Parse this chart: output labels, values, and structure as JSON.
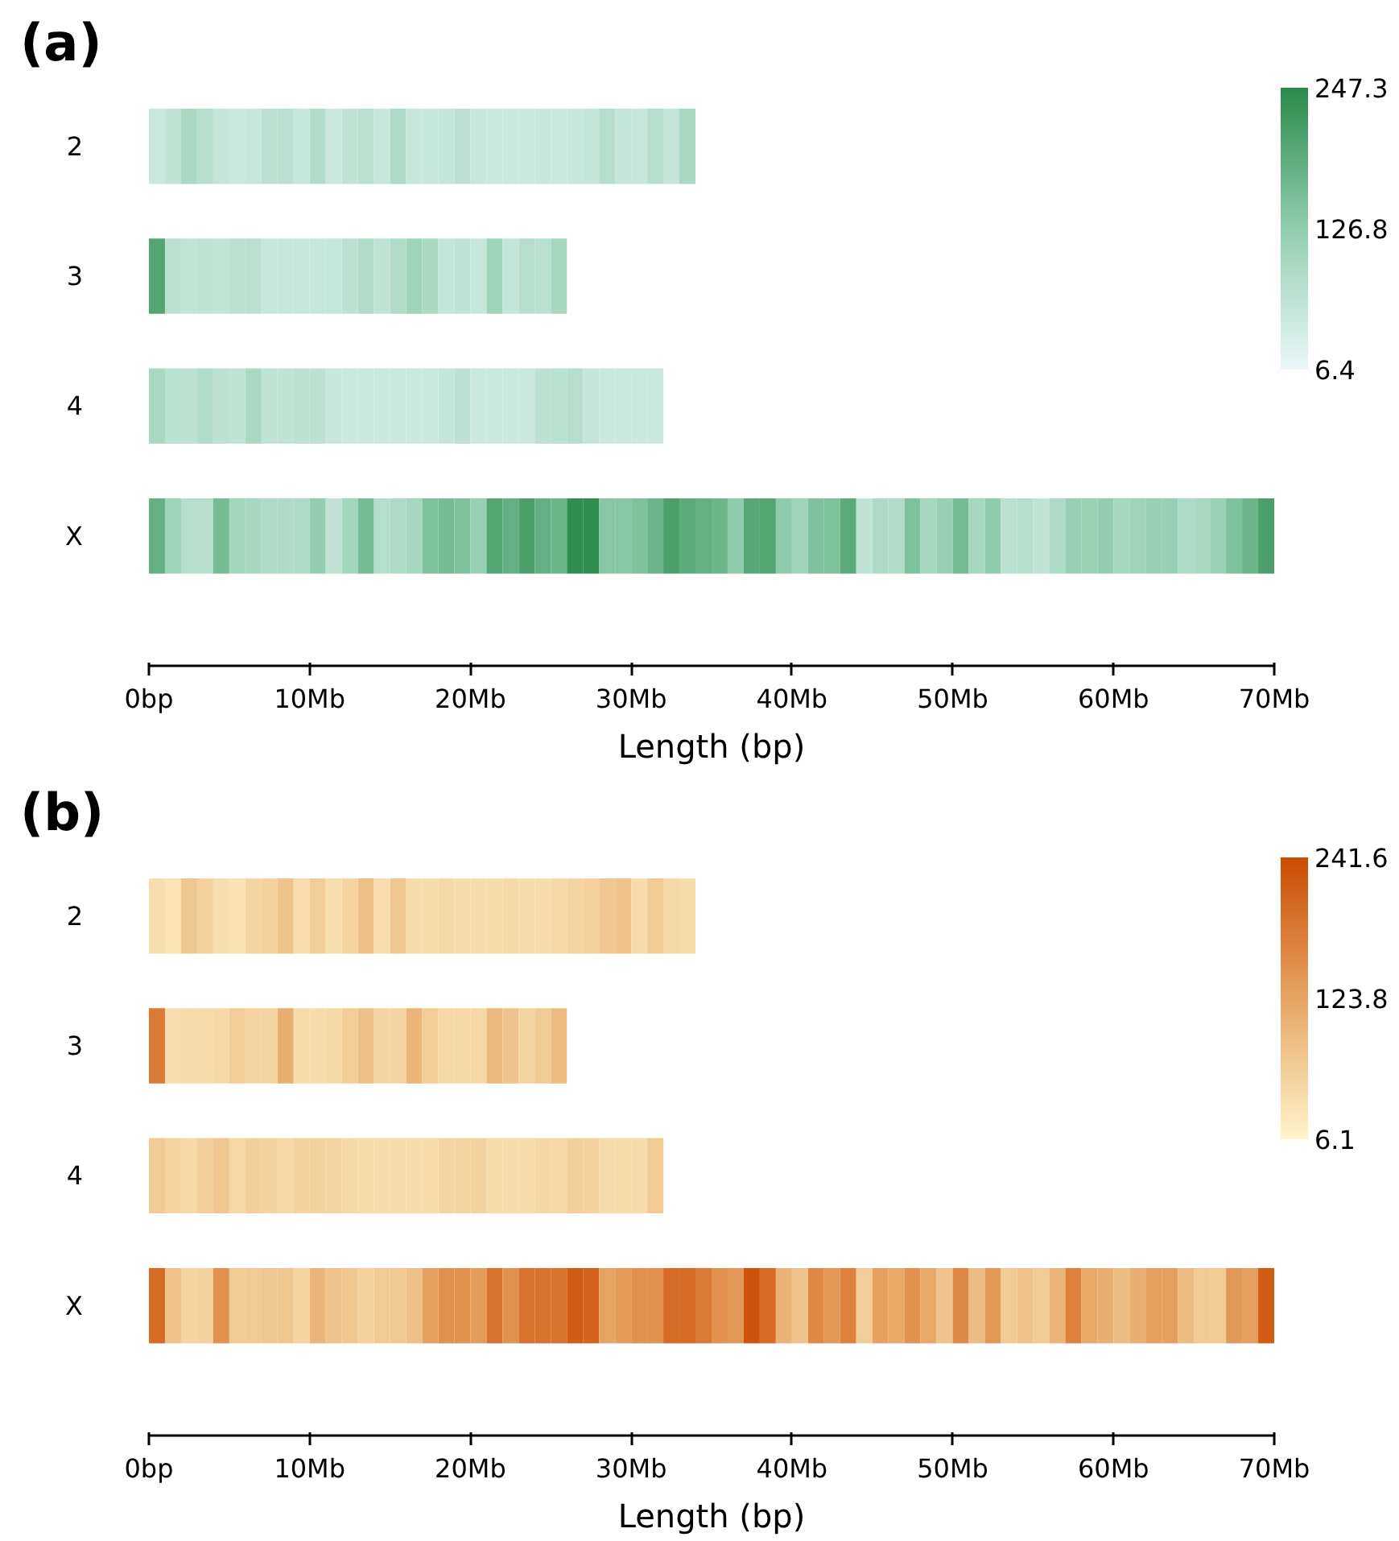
{
  "chart_data": [
    {
      "type": "heatmap",
      "title": "(a)",
      "xlabel": "Length (bp)",
      "x": [
        0.5,
        1.5,
        2.5,
        3.5,
        4.5,
        5.5,
        6.5,
        7.5,
        8.5,
        9.5,
        10.5,
        11.5,
        12.5,
        13.5,
        14.5,
        15.5,
        16.5,
        17.5,
        18.5,
        19.5,
        20.5,
        21.5,
        22.5,
        23.5,
        24.5,
        25.5,
        26.5,
        27.5,
        28.5,
        29.5,
        30.5,
        31.5,
        32.5,
        33.5,
        34.5,
        35.5,
        36.5,
        37.5,
        38.5,
        39.5,
        40.5,
        41.5,
        42.5,
        43.5,
        44.5,
        45.5,
        46.5,
        47.5,
        48.5,
        49.5,
        50.5,
        51.5,
        52.5,
        53.5,
        54.5,
        55.5,
        56.5,
        57.5,
        58.5,
        59.5,
        60.5,
        61.5,
        62.5,
        63.5,
        64.5,
        65.5,
        66.5,
        67.5,
        68.5,
        69.5
      ],
      "y_categories": [
        "2",
        "3",
        "4",
        "X"
      ],
      "cells": [
        [
          50,
          65,
          95,
          80,
          60,
          50,
          55,
          70,
          75,
          55,
          85,
          50,
          65,
          75,
          55,
          90,
          55,
          55,
          60,
          70,
          55,
          50,
          52,
          50,
          55,
          50,
          55,
          60,
          80,
          60,
          55,
          80,
          60,
          95,
          null,
          null,
          null,
          null,
          null,
          null,
          null,
          null,
          null,
          null,
          null,
          null,
          null,
          null,
          null,
          null,
          null,
          null,
          null,
          null,
          null,
          null,
          null,
          null,
          null,
          null,
          null,
          null,
          null,
          null,
          null,
          null,
          null,
          null,
          null,
          null
        ],
        [
          200,
          75,
          62,
          68,
          62,
          72,
          75,
          55,
          55,
          55,
          55,
          58,
          70,
          85,
          65,
          85,
          110,
          95,
          60,
          68,
          55,
          110,
          60,
          80,
          75,
          100,
          null,
          null,
          null,
          null,
          null,
          null,
          null,
          null,
          null,
          null,
          null,
          null,
          null,
          null,
          null,
          null,
          null,
          null,
          null,
          null,
          null,
          null,
          null,
          null,
          null,
          null,
          null,
          null,
          null,
          null,
          null,
          null,
          null,
          null,
          null,
          null,
          null,
          null,
          null,
          null,
          null,
          null,
          null,
          null
        ],
        [
          95,
          72,
          70,
          85,
          70,
          65,
          95,
          65,
          65,
          70,
          70,
          55,
          50,
          50,
          50,
          50,
          50,
          50,
          60,
          70,
          50,
          50,
          50,
          50,
          70,
          75,
          80,
          60,
          50,
          50,
          50,
          50,
          null,
          null,
          null,
          null,
          null,
          null,
          null,
          null,
          null,
          null,
          null,
          null,
          null,
          null,
          null,
          null,
          null,
          null,
          null,
          null,
          null,
          null,
          null,
          null,
          null,
          null,
          null,
          null,
          null,
          null,
          null,
          null,
          null,
          null,
          null,
          null,
          null,
          null
        ],
        [
          180,
          110,
          80,
          80,
          160,
          105,
          100,
          90,
          90,
          90,
          125,
          65,
          105,
          160,
          80,
          90,
          100,
          150,
          160,
          150,
          120,
          200,
          180,
          210,
          180,
          170,
          240,
          240,
          140,
          140,
          150,
          170,
          210,
          190,
          180,
          170,
          130,
          195,
          200,
          130,
          110,
          150,
          150,
          190,
          65,
          90,
          85,
          150,
          100,
          120,
          160,
          100,
          130,
          75,
          80,
          65,
          90,
          120,
          118,
          125,
          100,
          110,
          120,
          120,
          90,
          95,
          115,
          150,
          170,
          210
        ]
      ],
      "clim": [
        6.4,
        247.3
      ],
      "cticks": [
        6.4,
        126.8,
        247.3
      ],
      "xlim": [
        0,
        70
      ],
      "xticks": [
        {
          "value": 0,
          "label": "0bp"
        },
        {
          "value": 10,
          "label": "10Mb"
        },
        {
          "value": 20,
          "label": "20Mb"
        },
        {
          "value": 30,
          "label": "30Mb"
        },
        {
          "value": 40,
          "label": "40Mb"
        },
        {
          "value": 50,
          "label": "50Mb"
        },
        {
          "value": 60,
          "label": "60Mb"
        },
        {
          "value": 70,
          "label": "70Mb"
        }
      ],
      "grid": false
    },
    {
      "type": "heatmap",
      "title": "(b)",
      "xlabel": "Length (bp)",
      "x": [
        0.5,
        1.5,
        2.5,
        3.5,
        4.5,
        5.5,
        6.5,
        7.5,
        8.5,
        9.5,
        10.5,
        11.5,
        12.5,
        13.5,
        14.5,
        15.5,
        16.5,
        17.5,
        18.5,
        19.5,
        20.5,
        21.5,
        22.5,
        23.5,
        24.5,
        25.5,
        26.5,
        27.5,
        28.5,
        29.5,
        30.5,
        31.5,
        32.5,
        33.5,
        34.5,
        35.5,
        36.5,
        37.5,
        38.5,
        39.5,
        40.5,
        41.5,
        42.5,
        43.5,
        44.5,
        45.5,
        46.5,
        47.5,
        48.5,
        49.5,
        50.5,
        51.5,
        52.5,
        53.5,
        54.5,
        55.5,
        56.5,
        57.5,
        58.5,
        59.5,
        60.5,
        61.5,
        62.5,
        63.5,
        64.5,
        65.5,
        66.5,
        67.5,
        68.5,
        69.5
      ],
      "y_categories": [
        "2",
        "3",
        "4",
        "X"
      ],
      "cells": [
        [
          40,
          32,
          75,
          60,
          40,
          35,
          55,
          60,
          80,
          40,
          65,
          40,
          55,
          85,
          40,
          75,
          45,
          45,
          50,
          45,
          45,
          45,
          48,
          45,
          45,
          50,
          55,
          60,
          75,
          80,
          45,
          70,
          50,
          45,
          null,
          null,
          null,
          null,
          null,
          null,
          null,
          null,
          null,
          null,
          null,
          null,
          null,
          null,
          null,
          null,
          null,
          null,
          null,
          null,
          null,
          null,
          null,
          null,
          null,
          null,
          null,
          null,
          null,
          null,
          null,
          null,
          null,
          null,
          null,
          null
        ],
        [
          180,
          40,
          45,
          45,
          48,
          65,
          55,
          55,
          110,
          45,
          45,
          50,
          65,
          85,
          55,
          55,
          100,
          65,
          50,
          50,
          50,
          95,
          80,
          55,
          70,
          90,
          null,
          null,
          null,
          null,
          null,
          null,
          null,
          null,
          null,
          null,
          null,
          null,
          null,
          null,
          null,
          null,
          null,
          null,
          null,
          null,
          null,
          null,
          null,
          null,
          null,
          null,
          null,
          null,
          null,
          null,
          null,
          null,
          null,
          null,
          null,
          null,
          null,
          null,
          null,
          null,
          null,
          null,
          null,
          null
        ],
        [
          70,
          55,
          48,
          62,
          75,
          50,
          62,
          58,
          50,
          58,
          58,
          55,
          50,
          45,
          45,
          45,
          45,
          45,
          55,
          55,
          58,
          45,
          45,
          45,
          52,
          50,
          62,
          60,
          45,
          45,
          45,
          70,
          null,
          null,
          null,
          null,
          null,
          null,
          null,
          null,
          null,
          null,
          null,
          null,
          null,
          null,
          null,
          null,
          null,
          null,
          null,
          null,
          null,
          null,
          null,
          null,
          null,
          null,
          null,
          null,
          null,
          null,
          null,
          null,
          null,
          null,
          null,
          null,
          null,
          null
        ],
        [
          200,
          80,
          55,
          60,
          150,
          70,
          70,
          75,
          75,
          55,
          100,
          80,
          75,
          60,
          70,
          72,
          85,
          130,
          150,
          150,
          135,
          190,
          150,
          190,
          190,
          190,
          220,
          210,
          125,
          135,
          150,
          150,
          200,
          200,
          180,
          150,
          140,
          230,
          200,
          105,
          80,
          160,
          140,
          170,
          65,
          130,
          120,
          150,
          120,
          80,
          160,
          90,
          140,
          70,
          80,
          70,
          100,
          170,
          120,
          110,
          90,
          110,
          130,
          130,
          90,
          70,
          70,
          140,
          130,
          220
        ]
      ],
      "clim": [
        6.1,
        241.6
      ],
      "cticks": [
        6.1,
        123.8,
        241.6
      ],
      "xlim": [
        0,
        70
      ],
      "xticks": [
        {
          "value": 0,
          "label": "0bp"
        },
        {
          "value": 10,
          "label": "10Mb"
        },
        {
          "value": 20,
          "label": "20Mb"
        },
        {
          "value": 30,
          "label": "30Mb"
        },
        {
          "value": 40,
          "label": "40Mb"
        },
        {
          "value": 50,
          "label": "50Mb"
        },
        {
          "value": 60,
          "label": "60Mb"
        },
        {
          "value": 70,
          "label": "70Mb"
        }
      ],
      "grid": false
    }
  ]
}
